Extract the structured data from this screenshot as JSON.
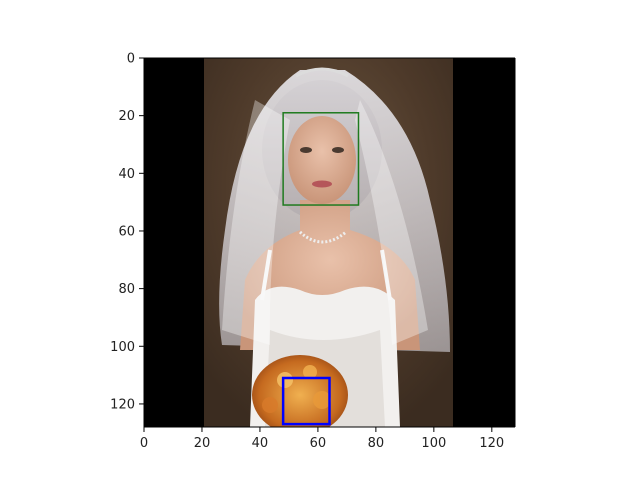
{
  "figure": {
    "image_extent": {
      "x": [
        0,
        128
      ],
      "y": [
        0,
        128
      ]
    },
    "x_ticks": [
      "0",
      "20",
      "40",
      "60",
      "80",
      "100",
      "120"
    ],
    "y_ticks": [
      "0",
      "20",
      "40",
      "60",
      "80",
      "100",
      "120"
    ],
    "image_content": "portrait photo of a bride in a white veil and strapless white gown holding an orange bouquet, letterboxed with black bars",
    "boxes": [
      {
        "label_name": "face-detection-box",
        "color": "#1f7a1f",
        "x0": 48,
        "y0": 19,
        "x1": 74,
        "y1": 51
      },
      {
        "label_name": "bouquet-detection-box",
        "color": "#0000ff",
        "x0": 48,
        "y0": 111,
        "x1": 64,
        "y1": 127
      }
    ]
  }
}
